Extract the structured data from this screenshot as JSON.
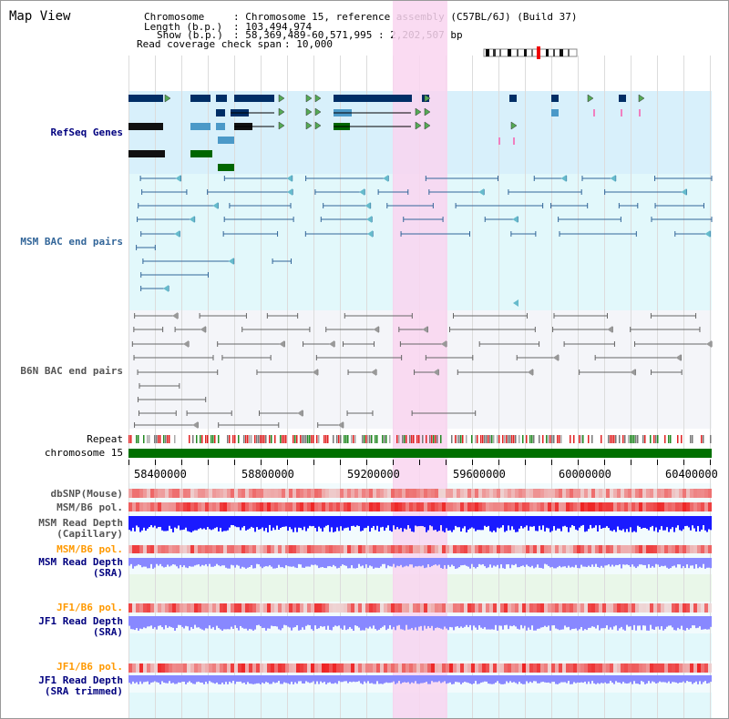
{
  "header": {
    "title": "Map View",
    "chromosome_key": "Chromosome",
    "chromosome_value": ": Chromosome 15, reference assembly (C57BL/6J) (Build 37)",
    "length_key": "Length (b.p.)",
    "length_value": ": 103,494,974",
    "show_key": "Show (b.p.)",
    "show_value": ": 58,369,489-60,571,995 : 2,202,507 bp",
    "read_coverage_key": "Read coverage check span",
    "read_coverage_value": ": 10,000"
  },
  "tracks": {
    "refseq": "RefSeq Genes",
    "msm_bac": "MSM BAC end pairs",
    "b6n_bac": "B6N BAC end pairs",
    "repeat": "Repeat",
    "chromosome": "chromosome 15",
    "dbsnp": "dbSNP(Mouse)",
    "msm_b6_pol_1": "MSM/B6 pol.",
    "msm_read_depth_cap_1": "MSM Read Depth",
    "msm_read_depth_cap_2": "(Capillary)",
    "msm_b6_pol_2": "MSM/B6 pol.",
    "msm_read_depth_sra_1": "MSM Read Depth",
    "msm_read_depth_sra_2": "(SRA)",
    "jf1_b6_pol_1": "JF1/B6 pol.",
    "jf1_read_depth_sra_1": "JF1 Read Depth",
    "jf1_read_depth_sra_2": "(SRA)",
    "jf1_b6_pol_2": "JF1/B6 pol.",
    "jf1_read_depth_trim_1": "JF1 Read Depth",
    "jf1_read_depth_trim_2": "(SRA trimmed)"
  },
  "axis": {
    "ticks": [
      "58400000",
      "58800000",
      "59200000",
      "59600000",
      "60000000",
      "60400000"
    ]
  },
  "colors": {
    "highlight": "#f9d5f0",
    "refseq_bg": "#d8f0fb",
    "msm_bg": "#e2f8fb",
    "b6n_bg": "#f4f5f9",
    "lower_bg": "#e2f8fb",
    "label_blue": "#00007f",
    "label_orange": "#ff9900",
    "msm_label": "#336699",
    "b6n_label": "#555555",
    "gene_dark": "#002e66",
    "gene_light": "#4b99c8",
    "gene_green": "#006600",
    "chromosome_bar": "#007000",
    "depth_blue": "#1a1aff",
    "depth_light": "#8888ff",
    "pol_red": "#ee2222"
  }
}
